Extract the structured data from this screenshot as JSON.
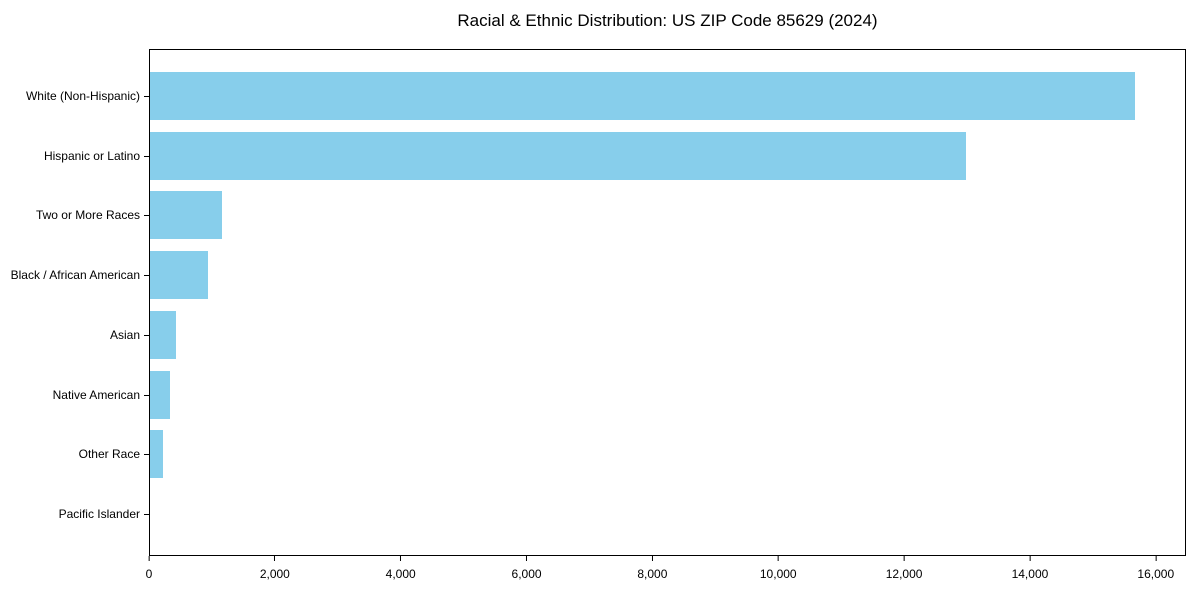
{
  "chart_data": {
    "type": "bar",
    "orientation": "horizontal",
    "title": "Racial & Ethnic Distribution: US ZIP Code 85629 (2024)",
    "categories": [
      "White (Non-Hispanic)",
      "Hispanic or Latino",
      "Two or More Races",
      "Black / African American",
      "Asian",
      "Native American",
      "Other Race",
      "Pacific Islander"
    ],
    "values": [
      15690,
      13000,
      1150,
      920,
      410,
      320,
      210,
      0
    ],
    "xlabel": "",
    "ylabel": "",
    "xlim": [
      0,
      16480
    ],
    "xticks": [
      0,
      2000,
      4000,
      6000,
      8000,
      10000,
      12000,
      14000,
      16000
    ],
    "xtick_labels": [
      "0",
      "2,000",
      "4,000",
      "6,000",
      "8,000",
      "10,000",
      "12,000",
      "14,000",
      "16,000"
    ],
    "bar_color": "#87CEEB",
    "axis_color": "#000000",
    "background_color": "#FFFFFF",
    "grid": false,
    "legend": null
  }
}
